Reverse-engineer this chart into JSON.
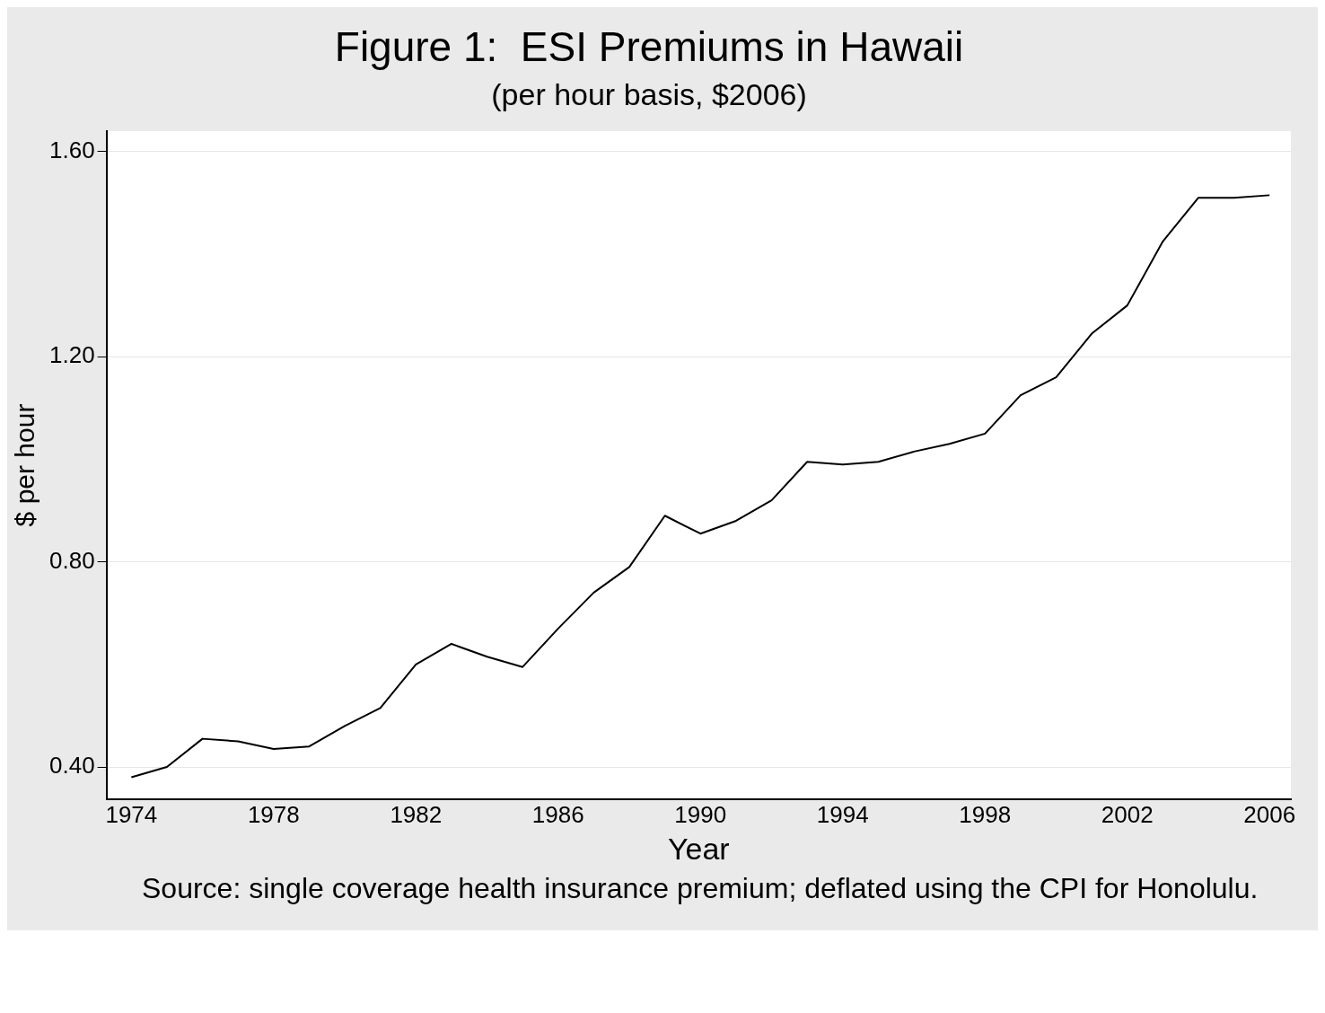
{
  "chart_data": {
    "type": "line",
    "title": "Figure 1:  ESI Premiums in Hawaii",
    "subtitle": "(per hour basis, $2006)",
    "xlabel": "Year",
    "ylabel": "$ per hour",
    "x": [
      1974,
      1975,
      1976,
      1977,
      1978,
      1979,
      1980,
      1981,
      1982,
      1983,
      1984,
      1985,
      1986,
      1987,
      1988,
      1989,
      1990,
      1991,
      1992,
      1993,
      1994,
      1995,
      1996,
      1997,
      1998,
      1999,
      2000,
      2001,
      2002,
      2003,
      2004,
      2005,
      2006
    ],
    "series": [
      {
        "color": "#000000",
        "values": [
          0.38,
          0.4,
          0.455,
          0.45,
          0.435,
          0.44,
          0.48,
          0.515,
          0.6,
          0.64,
          0.615,
          0.595,
          0.67,
          0.74,
          0.79,
          0.89,
          0.855,
          0.88,
          0.92,
          0.995,
          0.99,
          0.995,
          1.015,
          1.03,
          1.05,
          1.125,
          1.16,
          1.245,
          1.3,
          1.425,
          1.51,
          1.51,
          1.515
        ]
      }
    ],
    "xlim": [
      1973.3,
      2006.6
    ],
    "xticks": [
      1974,
      1978,
      1982,
      1986,
      1990,
      1994,
      1998,
      2002,
      2006
    ],
    "ylim": [
      0.337,
      1.64
    ],
    "yticks": [
      {
        "value": 0.4,
        "label": "0.40"
      },
      {
        "value": 0.8,
        "label": "0.80"
      },
      {
        "value": 1.2,
        "label": "1.20"
      },
      {
        "value": 1.6,
        "label": "1.60"
      }
    ],
    "grid": "y",
    "marker": "none",
    "line_style": "solid",
    "legend": false,
    "annotations": [
      "Source:  single coverage health insurance premium; deflated using the CPI for Honolulu."
    ]
  }
}
